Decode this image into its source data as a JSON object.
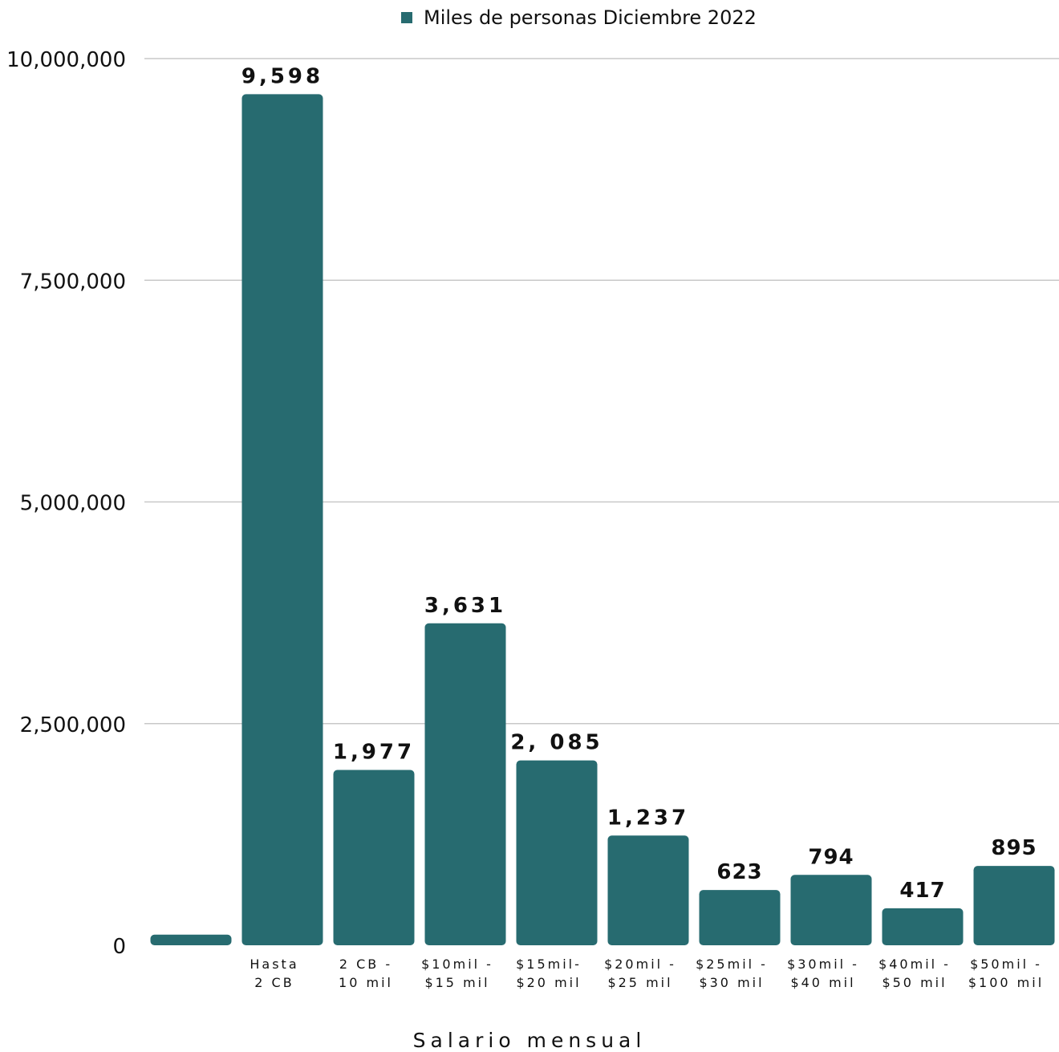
{
  "chart_data": {
    "type": "bar",
    "title": "",
    "legend": {
      "position": "top",
      "entries": [
        "Miles de personas Diciembre 2022"
      ]
    },
    "categories": [
      "",
      "Hasta 2 CB",
      "2 CB - 10 mil",
      "$10mil - $15 mil",
      "$15mil- $20 mil",
      "$20mil - $25 mil",
      "$25mil - $30 mil",
      "$30mil - $40 mil",
      "$40mil - $50 mil",
      "$50mil - $100 mil"
    ],
    "category_lines": [
      [
        ""
      ],
      [
        "Hasta",
        "2 CB"
      ],
      [
        "2 CB -",
        "10 mil"
      ],
      [
        "$10mil -",
        "$15 mil"
      ],
      [
        "$15mil-",
        "$20 mil"
      ],
      [
        "$20mil -",
        "$25 mil"
      ],
      [
        "$25mil -",
        "$30 mil"
      ],
      [
        "$30mil -",
        "$40 mil"
      ],
      [
        "$40mil -",
        "$50 mil"
      ],
      [
        "$50mil -",
        "$100 mil"
      ]
    ],
    "series": [
      {
        "name": "Miles de personas Diciembre 2022",
        "values": [
          120000,
          9598000,
          1977000,
          3631000,
          2085000,
          1237000,
          623000,
          794000,
          417000,
          895000
        ],
        "data_labels": [
          "",
          "9,598",
          "1,977",
          "3,631",
          "2, 085",
          "1,237",
          "623",
          "794",
          "417",
          "895"
        ]
      }
    ],
    "xlabel": "Salario mensual",
    "ylabel": "",
    "ylim": [
      0,
      10000000
    ],
    "yticks": [
      0,
      2500000,
      5000000,
      7500000,
      10000000
    ],
    "ytick_labels": [
      "0",
      "2,500,000",
      "5,000,000",
      "7,500,000",
      "10,000,000"
    ],
    "grid": true,
    "colors": {
      "bar": "#276b70",
      "grid": "#c8c8c8",
      "text": "#111111"
    }
  }
}
